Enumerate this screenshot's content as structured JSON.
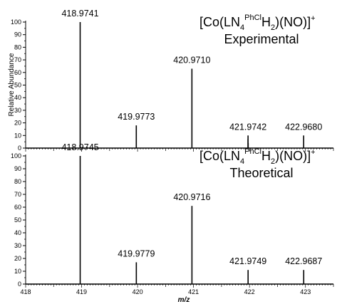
{
  "chart_data": [
    {
      "type": "bar",
      "annotation": {
        "prefix": "[Co(LN",
        "sub": "4",
        "sup": "PhCl",
        "suffix": "H",
        "sub2": "2",
        "suffix2": ")(NO)]",
        "charge": "+",
        "label": "Experimental"
      },
      "ylabel": "Relative Abundance",
      "ylim": [
        0,
        100
      ],
      "yticks": [
        "0",
        "10",
        "20",
        "30",
        "40",
        "50",
        "60",
        "70",
        "80",
        "90",
        "100"
      ],
      "xlim": [
        418,
        423.5
      ],
      "peaks": [
        {
          "x": 418.9741,
          "y": 100,
          "label": "418.9741"
        },
        {
          "x": 419.9773,
          "y": 18,
          "label": "419.9773"
        },
        {
          "x": 420.971,
          "y": 63,
          "label": "420.9710"
        },
        {
          "x": 421.9742,
          "y": 10,
          "label": "421.9742"
        },
        {
          "x": 422.968,
          "y": 10,
          "label": "422.9680"
        }
      ],
      "minor_peaks": [
        {
          "x": 419.1,
          "y": 1
        },
        {
          "x": 421.97,
          "y": 7
        },
        {
          "x": 421.98,
          "y": 4
        }
      ]
    },
    {
      "type": "bar",
      "annotation": {
        "prefix": "[Co(LN",
        "sub": "4",
        "sup": "PhCl",
        "suffix": "H",
        "sub2": "2",
        "suffix2": ")(NO)]",
        "charge": "+",
        "label": "Theoretical"
      },
      "ylim": [
        0,
        100
      ],
      "yticks": [
        "0",
        "10",
        "20",
        "30",
        "40",
        "50",
        "60",
        "70",
        "80",
        "90",
        "100"
      ],
      "xlim": [
        418,
        423.5
      ],
      "xticks": [
        "418",
        "419",
        "420",
        "421",
        "422",
        "423"
      ],
      "xlabel": "m/z",
      "peaks": [
        {
          "x": 418.9745,
          "y": 100,
          "label": "418.9745"
        },
        {
          "x": 419.9779,
          "y": 17,
          "label": "419.9779"
        },
        {
          "x": 420.9716,
          "y": 61,
          "label": "420.9716"
        },
        {
          "x": 421.9749,
          "y": 11,
          "label": "421.9749"
        },
        {
          "x": 422.9687,
          "y": 11,
          "label": "422.9687"
        }
      ],
      "minor_peaks": []
    }
  ]
}
